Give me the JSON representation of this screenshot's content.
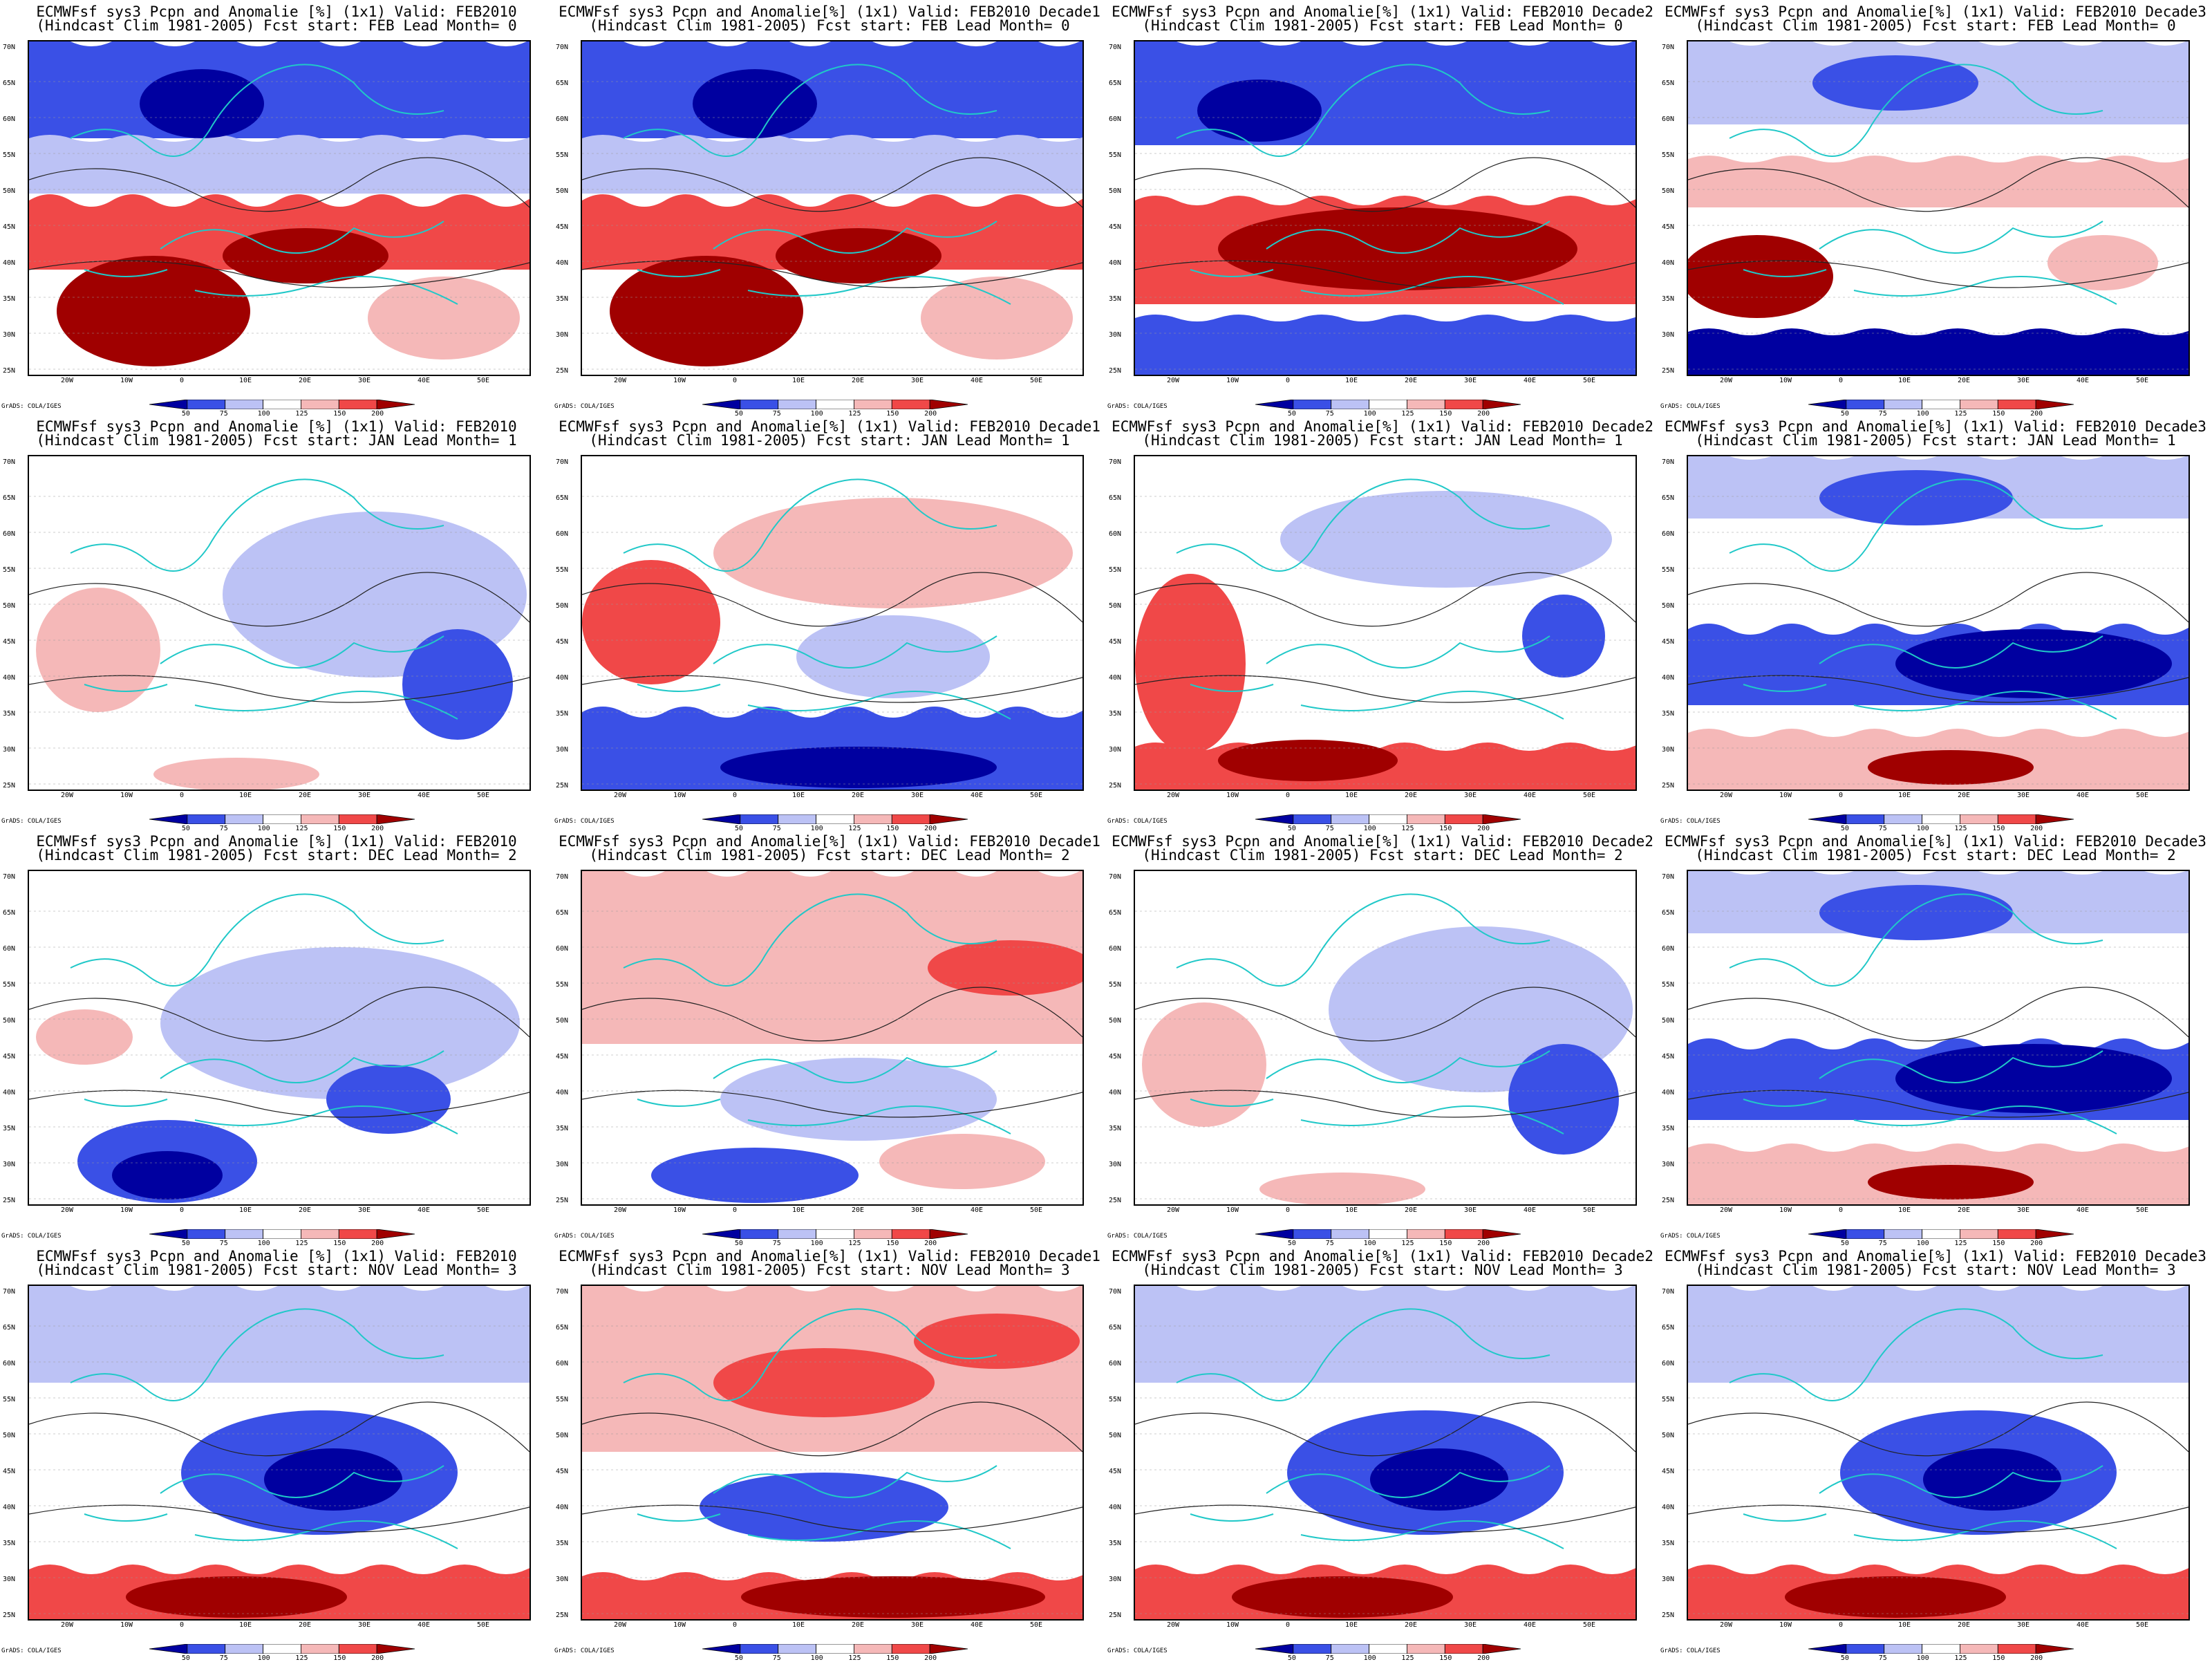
{
  "panels": [
    {
      "title1": "ECMWFsf sys3  Pcpn and Anomalie [%] (1x1) Valid: FEB2010",
      "title2": "(Hindcast Clim 1981-2005) Fcst start: FEB  Lead Month= 0",
      "pattern": "wet_south"
    },
    {
      "title1": "ECMWFsf sys3  Pcpn and Anomalie[%] (1x1) Valid: FEB2010 Decade1",
      "title2": "(Hindcast Clim 1981-2005) Fcst start: FEB  Lead Month= 0",
      "pattern": "wet_south"
    },
    {
      "title1": "ECMWFsf sys3  Pcpn and Anomalie[%] (1x1) Valid: FEB2010 Decade2",
      "title2": "(Hindcast Clim 1981-2005) Fcst start: FEB  Lead Month= 0",
      "pattern": "wet_band"
    },
    {
      "title1": "ECMWFsf sys3  Pcpn and Anomalie[%] (1x1) Valid: FEB2010 Decade3",
      "title2": "(Hindcast Clim 1981-2005) Fcst start: FEB  Lead Month= 0",
      "pattern": "wet_west"
    },
    {
      "title1": "ECMWFsf sys3  Pcpn and Anomalie [%] (1x1) Valid: FEB2010",
      "title2": "(Hindcast Clim 1981-2005) Fcst start: JAN  Lead Month= 1",
      "pattern": "mild"
    },
    {
      "title1": "ECMWFsf sys3  Pcpn and Anomalie[%] (1x1) Valid: FEB2010 Decade1",
      "title2": "(Hindcast Clim 1981-2005) Fcst start: JAN  Lead Month= 1",
      "pattern": "wet_west_dry_south"
    },
    {
      "title1": "ECMWFsf sys3  Pcpn and Anomalie[%] (1x1) Valid: FEB2010 Decade2",
      "title2": "(Hindcast Clim 1981-2005) Fcst start: JAN  Lead Month= 1",
      "pattern": "wet_sw"
    },
    {
      "title1": "ECMWFsf sys3  Pcpn and Anomalie[%] (1x1) Valid: FEB2010 Decade3",
      "title2": "(Hindcast Clim 1981-2005) Fcst start: JAN  Lead Month= 1",
      "pattern": "dry_med"
    },
    {
      "title1": "ECMWFsf sys3  Pcpn and Anomalie [%] (1x1) Valid: FEB2010",
      "title2": "(Hindcast Clim 1981-2005) Fcst start: DEC  Lead Month= 2",
      "pattern": "dry_africa"
    },
    {
      "title1": "ECMWFsf sys3  Pcpn and Anomalie[%] (1x1) Valid: FEB2010 Decade1",
      "title2": "(Hindcast Clim 1981-2005) Fcst start: DEC  Lead Month= 2",
      "pattern": "wet_north"
    },
    {
      "title1": "ECMWFsf sys3  Pcpn and Anomalie[%] (1x1) Valid: FEB2010 Decade2",
      "title2": "(Hindcast Clim 1981-2005) Fcst start: DEC  Lead Month= 2",
      "pattern": "mild"
    },
    {
      "title1": "ECMWFsf sys3  Pcpn and Anomalie[%] (1x1) Valid: FEB2010 Decade3",
      "title2": "(Hindcast Clim 1981-2005) Fcst start: DEC  Lead Month= 2",
      "pattern": "dry_med"
    },
    {
      "title1": "ECMWFsf sys3  Pcpn and Anomalie [%] (1x1) Valid: FEB2010",
      "title2": "(Hindcast Clim 1981-2005) Fcst start: NOV  Lead Month= 3",
      "pattern": "dry_center"
    },
    {
      "title1": "ECMWFsf sys3  Pcpn and Anomalie[%] (1x1) Valid: FEB2010 Decade1",
      "title2": "(Hindcast Clim 1981-2005) Fcst start: NOV  Lead Month= 3",
      "pattern": "wet_north_africa"
    },
    {
      "title1": "ECMWFsf sys3  Pcpn and Anomalie[%] (1x1) Valid: FEB2010 Decade2",
      "title2": "(Hindcast Clim 1981-2005) Fcst start: NOV  Lead Month= 3",
      "pattern": "dry_center"
    },
    {
      "title1": "ECMWFsf sys3  Pcpn and Anomalie[%] (1x1) Valid: FEB2010 Decade3",
      "title2": "(Hindcast Clim 1981-2005) Fcst start: NOV  Lead Month= 3",
      "pattern": "dry_center"
    }
  ],
  "lat_labels": [
    "70N",
    "65N",
    "60N",
    "55N",
    "50N",
    "45N",
    "40N",
    "35N",
    "30N",
    "25N"
  ],
  "lon_labels": [
    "20W",
    "10W",
    "0",
    "10E",
    "20E",
    "30E",
    "40E",
    "50E"
  ],
  "colorbar": {
    "ticks": [
      "50",
      "75",
      "100",
      "125",
      "150",
      "200"
    ],
    "colors": [
      "#0000a0",
      "#3a50e6",
      "#bcc2f5",
      "#ffffff",
      "#f5b8b8",
      "#f04848",
      "#a00000"
    ]
  },
  "credit": "GrADS: COLA/IGES"
}
